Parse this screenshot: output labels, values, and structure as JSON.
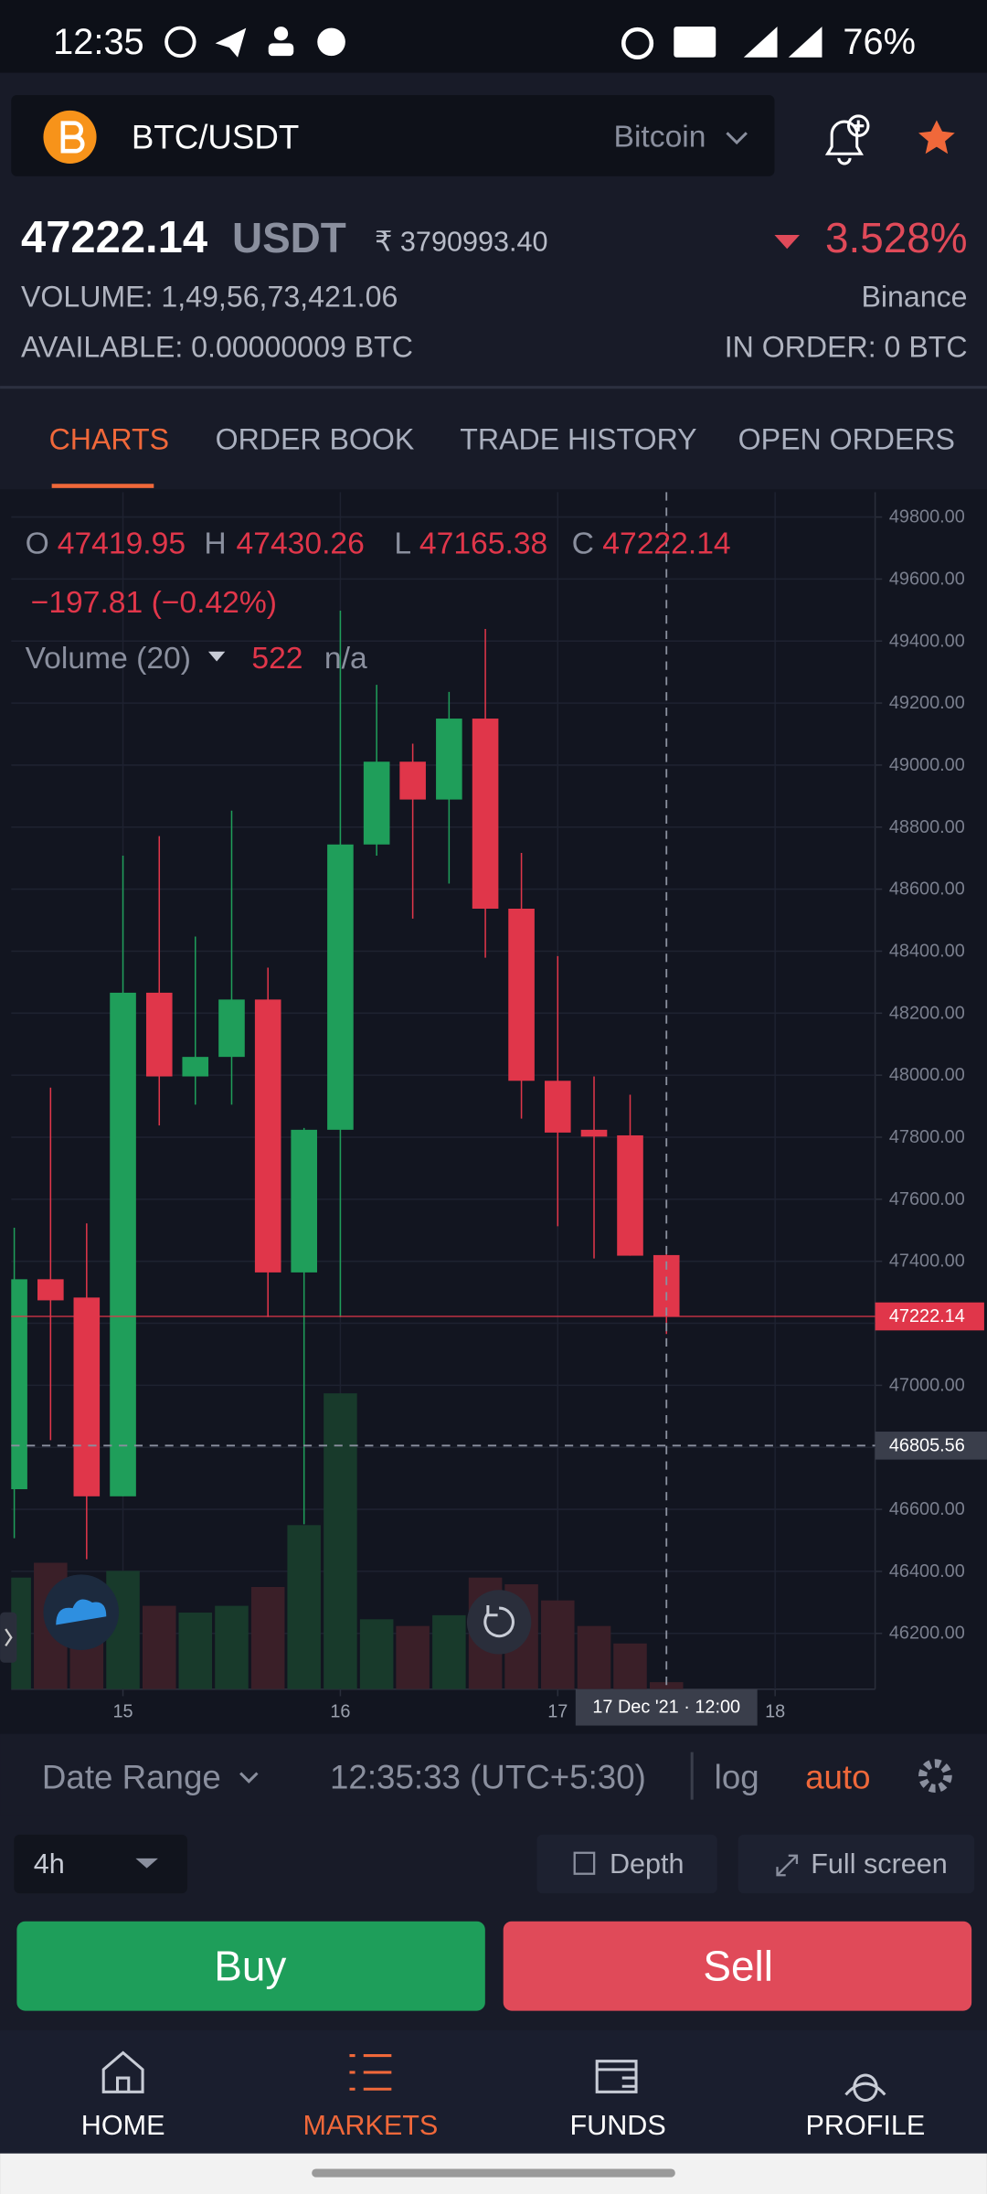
{
  "status_bar": {
    "time": "12:35",
    "battery": "76%"
  },
  "header": {
    "pair": "BTC/USDT",
    "name": "Bitcoin"
  },
  "ticker": {
    "last": "47222.14",
    "quote": "USDT",
    "inr": "₹ 3790993.40",
    "change": "3.528%",
    "volume": "VOLUME: 1,49,56,73,421.06",
    "exchange": "Binance",
    "available": "AVAILABLE: 0.00000009 BTC",
    "in_order": "IN ORDER: 0 BTC"
  },
  "tabs": [
    "CHARTS",
    "ORDER BOOK",
    "TRADE HISTORY",
    "OPEN ORDERS"
  ],
  "chart_data": {
    "type": "candlestick",
    "legend": {
      "ohlc": [
        {
          "label": "O",
          "value": "47419.95"
        },
        {
          "label": "H",
          "value": "47430.26"
        },
        {
          "label": "L",
          "value": "47165.38"
        },
        {
          "label": "C",
          "value": "47222.14"
        }
      ],
      "change": "−197.81 (−0.42%)",
      "volume_label": "Volume (20)",
      "volume_value": "522",
      "volume_ma": "n/a"
    },
    "x": [
      14.5,
      14.667,
      14.833,
      15,
      15.167,
      15.333,
      15.5,
      15.667,
      15.833,
      16,
      16.167,
      16.333,
      16.5,
      16.667,
      16.833,
      17,
      17.167,
      17.333,
      17.5
    ],
    "open": [
      46665,
      47342,
      47283,
      46642,
      48266,
      47996,
      48059,
      48244,
      47364,
      47824,
      48744,
      49011,
      48889,
      49150,
      48537,
      47982,
      47824,
      47806,
      47419.95
    ],
    "high": [
      47508,
      47960,
      47522,
      48708,
      48771,
      48447,
      48853,
      48347,
      47830,
      49498,
      49259,
      49069,
      49236,
      49439,
      48717,
      48384,
      47996,
      47937,
      47430.26
    ],
    "low": [
      46507,
      46823,
      46439,
      46642,
      47838,
      47905,
      47905,
      47220,
      46552,
      47220,
      48708,
      48505,
      48618,
      48379,
      47860,
      47513,
      47409,
      47418,
      47165.38
    ],
    "close": [
      47342,
      47274,
      46642,
      48266,
      47996,
      48059,
      48244,
      47364,
      47824,
      48744,
      49011,
      48889,
      49150,
      48537,
      47982,
      47815,
      47802,
      47418,
      47222.14
    ],
    "volume": [
      8300,
      9400,
      6800,
      8800,
      6200,
      5700,
      6200,
      7600,
      12200,
      22000,
      5200,
      4700,
      5500,
      8300,
      7800,
      6600,
      4700,
      3400,
      522
    ],
    "up_color": "#1f9e5a",
    "down_color": "#e0364a",
    "volume_up_color": "#183a2b",
    "volume_down_color": "#3a1f28",
    "volume_lim": [
      0,
      89000
    ],
    "xlim": [
      14.486,
      18.46
    ],
    "xticks": [
      15,
      16,
      17,
      18
    ],
    "ylim": [
      46020,
      49880
    ],
    "yticks": [
      {
        "value": 49800,
        "label": "49800.00"
      },
      {
        "value": 49600,
        "label": "49600.00"
      },
      {
        "value": 49400,
        "label": "49400.00"
      },
      {
        "value": 49200,
        "label": "49200.00"
      },
      {
        "value": 49000,
        "label": "49000.00"
      },
      {
        "value": 48800,
        "label": "48800.00"
      },
      {
        "value": 48600,
        "label": "48600.00"
      },
      {
        "value": 48400,
        "label": "48400.00"
      },
      {
        "value": 48200,
        "label": "48200.00"
      },
      {
        "value": 48000,
        "label": "48000.00"
      },
      {
        "value": 47800,
        "label": "47800.00"
      },
      {
        "value": 47600,
        "label": "47600.00"
      },
      {
        "value": 47400,
        "label": "47400.00"
      },
      {
        "value": 47200,
        "label": "47200.00"
      },
      {
        "value": 47000,
        "label": "47000.00"
      },
      {
        "value": 46800,
        "label": "46800.00"
      },
      {
        "value": 46600,
        "label": "46600.00"
      },
      {
        "value": 46400,
        "label": "46400.00"
      },
      {
        "value": 46200,
        "label": "46200.00"
      }
    ],
    "grid": true,
    "last_price": {
      "value": 47222.14,
      "label": "47222.14"
    },
    "crosshair_price": {
      "value": 46805.56,
      "label": "46805.56"
    },
    "crosshair_time": {
      "value": 17.5,
      "label": "17 Dec '21 · 12:00"
    }
  },
  "toolbar": {
    "date_range": "Date Range",
    "clock": "12:35:33 (UTC+5:30)",
    "log": "log",
    "auto": "auto"
  },
  "controls": {
    "interval": "4h",
    "depth": "Depth",
    "fullscreen": "Full screen"
  },
  "actions": {
    "buy": "Buy",
    "sell": "Sell"
  },
  "nav": [
    "HOME",
    "MARKETS",
    "FUNDS",
    "PROFILE"
  ]
}
